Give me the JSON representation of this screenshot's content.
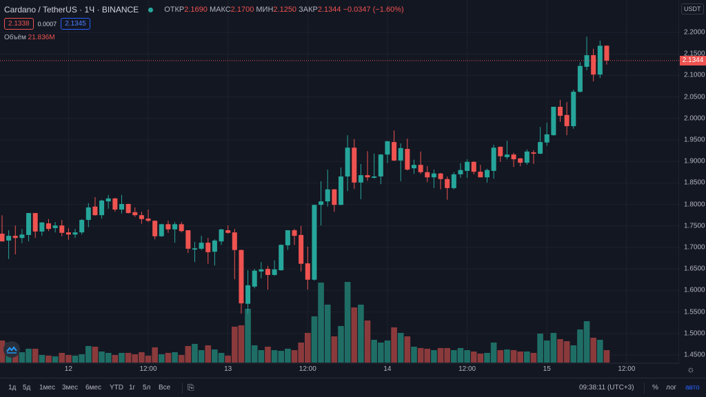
{
  "header": {
    "symbol": "Cardano / TetherUS · 1Ч · BINANCE",
    "open_label": "ОТКР",
    "open": "2.1690",
    "high_label": "МАКС",
    "high": "2.1700",
    "low_label": "МИН",
    "low": "2.1250",
    "close_label": "ЗАКР",
    "close": "2.1344",
    "change": "−0.0347 (−1.60%)",
    "bid": "2.1338",
    "spread": "0.0007",
    "ask": "2.1345",
    "volume_label": "Объём",
    "volume": "21.836M"
  },
  "price_axis": {
    "currency": "USDT",
    "current_price": "2.1344"
  },
  "toolbar": {
    "ranges": [
      "1д",
      "5д",
      "1мес",
      "3мес",
      "6мес",
      "YTD",
      "1г",
      "5л",
      "Все"
    ],
    "time": "09:38:11 (UTC+3)",
    "percent": "%",
    "log": "лог",
    "auto": "авто"
  },
  "colors": {
    "up": "#26a69a",
    "down": "#ef5350",
    "background": "#131722",
    "auto_active": "#2962ff"
  },
  "chart_data": {
    "type": "candlestick",
    "title": "",
    "interval": "1Ч",
    "ylim": [
      1.43,
      2.27
    ],
    "grid": true,
    "y_ticks": [
      "2.2000",
      "2.1500",
      "2.1000",
      "2.0500",
      "2.0000",
      "1.9500",
      "1.9000",
      "1.8500",
      "1.8000",
      "1.7500",
      "1.7000",
      "1.6500",
      "1.6000",
      "1.5500",
      "1.5000",
      "1.4500"
    ],
    "x_ticks": [
      {
        "label": "12",
        "index": 10
      },
      {
        "label": "12:00",
        "index": 22
      },
      {
        "label": "13",
        "index": 34
      },
      {
        "label": "12:00",
        "index": 46
      },
      {
        "label": "14",
        "index": 58
      },
      {
        "label": "12:00",
        "index": 70
      },
      {
        "label": "15",
        "index": 82
      },
      {
        "label": "12:00",
        "index": 94
      }
    ],
    "ohlc": [
      [
        1.732,
        1.775,
        1.714,
        1.714
      ],
      [
        1.716,
        1.74,
        1.673,
        1.727
      ],
      [
        1.727,
        1.751,
        1.684,
        1.722
      ],
      [
        1.722,
        1.743,
        1.71,
        1.73
      ],
      [
        1.729,
        1.78,
        1.714,
        1.78
      ],
      [
        1.78,
        1.78,
        1.722,
        1.737
      ],
      [
        1.737,
        1.759,
        1.727,
        1.758
      ],
      [
        1.756,
        1.766,
        1.738,
        1.743
      ],
      [
        1.745,
        1.759,
        1.735,
        1.751
      ],
      [
        1.751,
        1.764,
        1.726,
        1.734
      ],
      [
        1.735,
        1.745,
        1.718,
        1.73
      ],
      [
        1.73,
        1.743,
        1.722,
        1.735
      ],
      [
        1.735,
        1.766,
        1.73,
        1.764
      ],
      [
        1.764,
        1.803,
        1.747,
        1.793
      ],
      [
        1.795,
        1.817,
        1.774,
        1.775
      ],
      [
        1.775,
        1.811,
        1.767,
        1.809
      ],
      [
        1.807,
        1.822,
        1.79,
        1.814
      ],
      [
        1.814,
        1.815,
        1.783,
        1.788
      ],
      [
        1.788,
        1.822,
        1.779,
        1.801
      ],
      [
        1.801,
        1.802,
        1.779,
        1.78
      ],
      [
        1.782,
        1.793,
        1.771,
        1.775
      ],
      [
        1.775,
        1.783,
        1.755,
        1.766
      ],
      [
        1.767,
        1.788,
        1.759,
        1.762
      ],
      [
        1.762,
        1.763,
        1.719,
        1.726
      ],
      [
        1.726,
        1.755,
        1.725,
        1.754
      ],
      [
        1.754,
        1.762,
        1.734,
        1.742
      ],
      [
        1.742,
        1.759,
        1.711,
        1.754
      ],
      [
        1.754,
        1.759,
        1.735,
        1.738
      ],
      [
        1.74,
        1.74,
        1.687,
        1.697
      ],
      [
        1.695,
        1.713,
        1.666,
        1.698
      ],
      [
        1.697,
        1.727,
        1.694,
        1.711
      ],
      [
        1.711,
        1.722,
        1.662,
        1.689
      ],
      [
        1.69,
        1.719,
        1.658,
        1.716
      ],
      [
        1.714,
        1.743,
        1.706,
        1.742
      ],
      [
        1.74,
        1.751,
        1.732,
        1.734
      ],
      [
        1.735,
        1.743,
        1.626,
        1.694
      ],
      [
        1.694,
        1.695,
        1.546,
        1.57
      ],
      [
        1.569,
        1.647,
        1.546,
        1.612
      ],
      [
        1.609,
        1.65,
        1.605,
        1.646
      ],
      [
        1.644,
        1.666,
        1.628,
        1.649
      ],
      [
        1.65,
        1.657,
        1.602,
        1.636
      ],
      [
        1.636,
        1.67,
        1.634,
        1.649
      ],
      [
        1.647,
        1.707,
        1.646,
        1.706
      ],
      [
        1.705,
        1.74,
        1.694,
        1.74
      ],
      [
        1.74,
        1.743,
        1.706,
        1.727
      ],
      [
        1.729,
        1.75,
        1.644,
        1.662
      ],
      [
        1.663,
        1.702,
        1.602,
        1.625
      ],
      [
        1.625,
        1.799,
        1.623,
        1.799
      ],
      [
        1.799,
        1.854,
        1.751,
        1.807
      ],
      [
        1.807,
        1.881,
        1.795,
        1.835
      ],
      [
        1.835,
        1.836,
        1.783,
        1.799
      ],
      [
        1.799,
        1.886,
        1.798,
        1.865
      ],
      [
        1.865,
        1.961,
        1.831,
        1.932
      ],
      [
        1.932,
        1.952,
        1.836,
        1.851
      ],
      [
        1.851,
        1.894,
        1.812,
        1.868
      ],
      [
        1.868,
        1.924,
        1.855,
        1.863
      ],
      [
        1.862,
        1.918,
        1.86,
        1.865
      ],
      [
        1.865,
        1.917,
        1.847,
        1.916
      ],
      [
        1.916,
        1.947,
        1.896,
        1.947
      ],
      [
        1.945,
        1.972,
        1.901,
        1.902
      ],
      [
        1.902,
        1.942,
        1.854,
        1.931
      ],
      [
        1.929,
        1.953,
        1.879,
        1.881
      ],
      [
        1.884,
        1.904,
        1.871,
        1.892
      ],
      [
        1.892,
        1.923,
        1.871,
        1.875
      ],
      [
        1.875,
        1.889,
        1.852,
        1.863
      ],
      [
        1.863,
        1.881,
        1.838,
        1.872
      ],
      [
        1.872,
        1.873,
        1.835,
        1.859
      ],
      [
        1.859,
        1.865,
        1.811,
        1.838
      ],
      [
        1.838,
        1.875,
        1.835,
        1.87
      ],
      [
        1.87,
        1.896,
        1.862,
        1.88
      ],
      [
        1.878,
        1.905,
        1.862,
        1.899
      ],
      [
        1.899,
        1.9,
        1.87,
        1.876
      ],
      [
        1.876,
        1.892,
        1.863,
        1.863
      ],
      [
        1.863,
        1.883,
        1.851,
        1.88
      ],
      [
        1.878,
        1.939,
        1.86,
        1.932
      ],
      [
        1.934,
        1.935,
        1.899,
        1.912
      ],
      [
        1.91,
        1.948,
        1.905,
        1.916
      ],
      [
        1.916,
        1.92,
        1.887,
        1.905
      ],
      [
        1.907,
        1.908,
        1.889,
        1.897
      ],
      [
        1.897,
        1.928,
        1.892,
        1.923
      ],
      [
        1.921,
        1.926,
        1.894,
        1.918
      ],
      [
        1.918,
        1.98,
        1.917,
        1.945
      ],
      [
        1.944,
        1.99,
        1.936,
        1.963
      ],
      [
        1.961,
        2.027,
        1.96,
        2.027
      ],
      [
        2.027,
        2.043,
        1.992,
        2.006
      ],
      [
        2.008,
        2.038,
        1.961,
        1.982
      ],
      [
        1.982,
        2.067,
        1.976,
        2.062
      ],
      [
        2.062,
        2.131,
        2.06,
        2.122
      ],
      [
        2.12,
        2.19,
        2.112,
        2.147
      ],
      [
        2.147,
        2.162,
        2.086,
        2.102
      ],
      [
        2.102,
        2.181,
        2.094,
        2.169
      ],
      [
        2.169,
        2.17,
        2.125,
        2.1344
      ]
    ],
    "volume_millions": [
      38.8,
      35.2,
      31.5,
      18.2,
      24.3,
      24.3,
      13.3,
      12.1,
      10.9,
      17.0,
      13.3,
      12.1,
      14.6,
      29.1,
      27.9,
      19.4,
      17.0,
      13.3,
      17.0,
      17.0,
      14.6,
      18.2,
      12.1,
      26.7,
      14.6,
      17.0,
      18.2,
      13.3,
      29.1,
      32.8,
      21.8,
      30.3,
      23.0,
      17.0,
      12.1,
      63.1,
      65.5,
      94.6,
      30.3,
      21.8,
      27.9,
      21.8,
      20.6,
      24.3,
      21.8,
      35.2,
      52.2,
      81.3,
      140.7,
      101.9,
      46.1,
      64.3,
      141.9,
      97.0,
      101.9,
      74.0,
      40.0,
      35.2,
      38.8,
      61.9,
      52.2,
      46.1,
      27.9,
      25.5,
      24.3,
      21.8,
      25.5,
      25.5,
      21.8,
      25.5,
      21.8,
      19.4,
      15.8,
      17.0,
      35.2,
      21.8,
      23.0,
      21.8,
      19.4,
      19.4,
      17.0,
      50.9,
      38.8,
      52.2,
      41.2,
      37.6,
      30.3,
      58.2,
      72.8,
      43.7,
      40.0,
      21.836
    ]
  }
}
